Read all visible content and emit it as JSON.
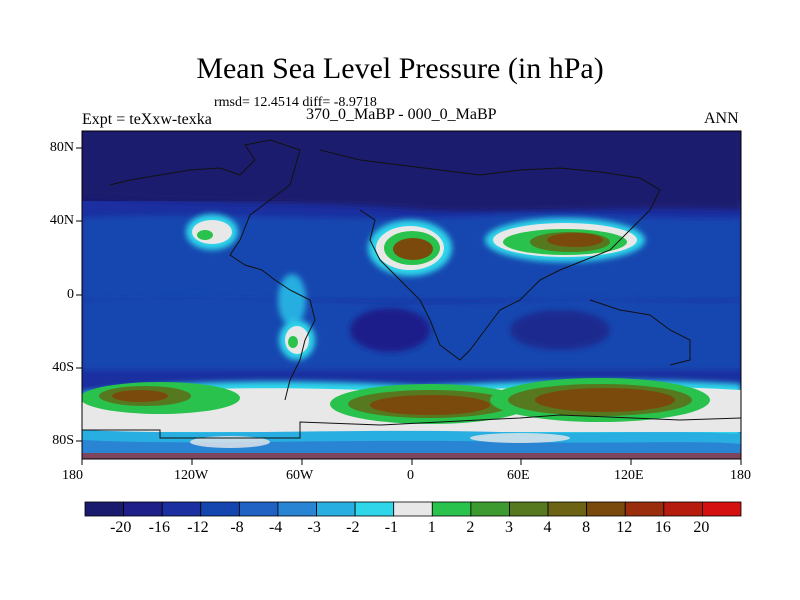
{
  "plot": {
    "title": "Mean Sea Level Pressure (in hPa)",
    "stats_text": "rmsd= 12.4514 diff= -8.9718",
    "expt_label": "Expt = teXxw-texka",
    "case_label": "370_0_MaBP - 000_0_MaBP",
    "season": "ANN"
  },
  "axes": {
    "x_ticks": [
      "180",
      "120W",
      "60W",
      "0",
      "60E",
      "120E",
      "180"
    ],
    "y_ticks": [
      "80N",
      "40N",
      "0",
      "40S",
      "80S"
    ]
  },
  "colorbar": {
    "labels": [
      "-20",
      "-16",
      "-12",
      "-8",
      "-4",
      "-3",
      "-2",
      "-1",
      "1",
      "2",
      "3",
      "4",
      "8",
      "12",
      "16",
      "20"
    ],
    "colors": [
      "#1a1a6e",
      "#1f1f8a",
      "#1b2fa0",
      "#1546b0",
      "#1f62c4",
      "#2a84d4",
      "#28aee0",
      "#2fd6ea",
      "#e8e8e8",
      "#28c24c",
      "#3c9a30",
      "#56781e",
      "#6c6414",
      "#7a4a0c",
      "#9a2e0c",
      "#b61c0e",
      "#d41010"
    ]
  },
  "colors": {
    "ocean_background": "#1b2fa0",
    "high_lat": "#1a1a6e"
  }
}
